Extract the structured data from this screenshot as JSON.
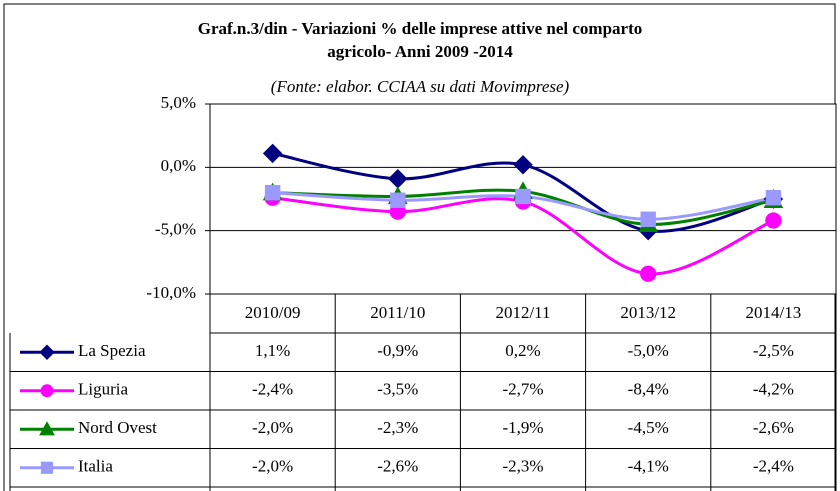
{
  "chart_data": {
    "type": "line",
    "title": [
      "Graf.n.3/din - Variazioni % delle imprese attive nel comparto",
      "agricolo- Anni 2009 -2014"
    ],
    "subtitle": "(Fonte: elabor. CCIAA su dati Movimprese)",
    "categories": [
      "2010/09",
      "2011/10",
      "2012/11",
      "2013/12",
      "2014/13"
    ],
    "ylim": [
      -10,
      5
    ],
    "yticks": [
      {
        "value": -10,
        "label": "-10,0%"
      },
      {
        "value": -5,
        "label": "-5,0%"
      },
      {
        "value": 0,
        "label": "0,0%"
      },
      {
        "value": 5,
        "label": "5,0%"
      }
    ],
    "grid": true,
    "series": [
      {
        "name": "La Spezia",
        "color": "#000080",
        "marker": "diamond",
        "values": [
          1.1,
          -0.9,
          0.2,
          -5.0,
          -2.5
        ],
        "value_labels": [
          "1,1%",
          "-0,9%",
          "0,2%",
          "-5,0%",
          "-2,5%"
        ]
      },
      {
        "name": "Liguria",
        "color": "#ff00ff",
        "marker": "circle",
        "values": [
          -2.4,
          -3.5,
          -2.7,
          -8.4,
          -4.2
        ],
        "value_labels": [
          "-2,4%",
          "-3,5%",
          "-2,7%",
          "-8,4%",
          "-4,2%"
        ]
      },
      {
        "name": "Nord Ovest",
        "color": "#008000",
        "marker": "triangle",
        "values": [
          -2.0,
          -2.3,
          -1.9,
          -4.5,
          -2.6
        ],
        "value_labels": [
          "-2,0%",
          "-2,3%",
          "-1,9%",
          "-4,5%",
          "-2,6%"
        ]
      },
      {
        "name": "Italia",
        "color": "#9999ff",
        "marker": "square",
        "values": [
          -2.0,
          -2.6,
          -2.3,
          -4.1,
          -2.4
        ],
        "value_labels": [
          "-2,0%",
          "-2,6%",
          "-2,3%",
          "-4,1%",
          "-2,4%"
        ]
      }
    ]
  }
}
